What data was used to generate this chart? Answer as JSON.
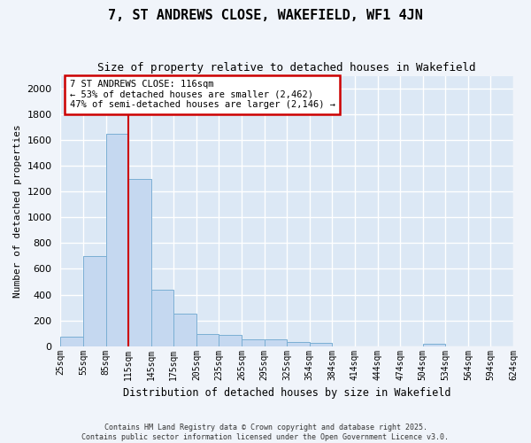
{
  "title": "7, ST ANDREWS CLOSE, WAKEFIELD, WF1 4JN",
  "subtitle": "Size of property relative to detached houses in Wakefield",
  "xlabel": "Distribution of detached houses by size in Wakefield",
  "ylabel": "Number of detached properties",
  "bar_values": [
    70,
    700,
    1650,
    1300,
    440,
    250,
    95,
    90,
    50,
    50,
    30,
    25,
    0,
    0,
    0,
    0,
    20,
    0,
    0,
    0
  ],
  "bin_labels": [
    "25sqm",
    "55sqm",
    "85sqm",
    "115sqm",
    "145sqm",
    "175sqm",
    "205sqm",
    "235sqm",
    "265sqm",
    "295sqm",
    "325sqm",
    "354sqm",
    "384sqm",
    "414sqm",
    "444sqm",
    "474sqm",
    "504sqm",
    "534sqm",
    "564sqm",
    "594sqm",
    "624sqm"
  ],
  "bar_color": "#c5d8f0",
  "bar_edge_color": "#7bafd4",
  "plot_bg_color": "#dce8f5",
  "fig_bg_color": "#f0f4fa",
  "grid_color": "#ffffff",
  "red_line_color": "#cc0000",
  "red_line_bin": 3,
  "annotation_text": "7 ST ANDREWS CLOSE: 116sqm\n← 53% of detached houses are smaller (2,462)\n47% of semi-detached houses are larger (2,146) →",
  "annotation_box_facecolor": "#ffffff",
  "annotation_box_edgecolor": "#cc0000",
  "ylim": [
    0,
    2100
  ],
  "yticks": [
    0,
    200,
    400,
    600,
    800,
    1000,
    1200,
    1400,
    1600,
    1800,
    2000
  ],
  "footer1": "Contains HM Land Registry data © Crown copyright and database right 2025.",
  "footer2": "Contains public sector information licensed under the Open Government Licence v3.0."
}
